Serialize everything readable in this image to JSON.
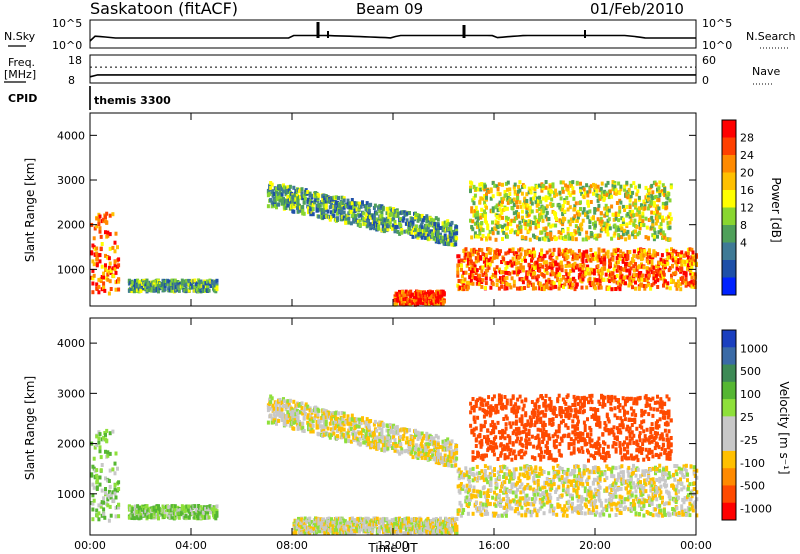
{
  "header": {
    "station": "Saskatoon (fitACF)",
    "beam": "Beam 09",
    "date": "01/Feb/2010"
  },
  "top_panels": {
    "nsky_label": "N.Sky",
    "nsearch_label": "N.Search",
    "nsky_ticks": [
      "10^5",
      "10^0"
    ],
    "freq_label": "Freq.",
    "freq_unit": "[MHz]",
    "freq_ticks": [
      "18",
      "8"
    ],
    "nave_label": "Nave",
    "nave_ticks": [
      "60",
      "0"
    ],
    "cpid_label": "CPID",
    "cpid_value": "themis 3300"
  },
  "colors": {
    "power": [
      "#0022ff",
      "#1e50a8",
      "#3f7a96",
      "#4fa05a",
      "#89d630",
      "#ffff00",
      "#ffc000",
      "#ff8a00",
      "#ff4000",
      "#ff0000"
    ],
    "velocity": [
      "#1a3fbf",
      "#3a6aa6",
      "#3d8a55",
      "#55b632",
      "#8ee03a",
      "#c8c8c8",
      "#c8c8c8",
      "#ffc000",
      "#ff8a00",
      "#ff4a00",
      "#ff0000"
    ]
  },
  "chart_data": [
    {
      "type": "line",
      "title": "Saskatoon (fitACF) Beam 09 01/Feb/2010",
      "panel": "N.Sky / N.Search",
      "x": [
        0,
        0.2,
        1,
        4,
        8,
        9.1,
        9.4,
        12,
        14.9,
        16,
        19.6,
        22,
        24
      ],
      "series": [
        {
          "name": "N.Sky",
          "values": [
            1,
            5,
            3,
            3,
            3,
            60,
            6,
            3,
            50,
            3,
            12,
            3,
            3
          ]
        }
      ]
    },
    {
      "type": "line",
      "panel": "Freq. [MHz] / Nave",
      "x": [
        0,
        0.3,
        6,
        12,
        18,
        24
      ],
      "series": [
        {
          "name": "Freq.",
          "values": [
            10.2,
            10.9,
            10.9,
            10.9,
            10.9,
            10.9
          ]
        },
        {
          "name": "Nave",
          "values": [
            34,
            34,
            34,
            34,
            34,
            34
          ]
        }
      ],
      "ylim": [
        8,
        18
      ]
    },
    {
      "type": "heatmap",
      "panel": "Power",
      "xlabel": "Time UT",
      "ylabel": "Slant Range [km]",
      "x_ticks": [
        "00:00",
        "04:00",
        "08:00",
        "12:00",
        "16:00",
        "20:00",
        "00:00"
      ],
      "xlim": [
        0,
        24
      ],
      "ylim": [
        180,
        4500
      ],
      "y_ticks": [
        1000,
        2000,
        3000,
        4000
      ],
      "colorbar_label": "Power [dB]",
      "colorbar_ticks": [
        4,
        8,
        12,
        16,
        20,
        24,
        28
      ],
      "features": [
        {
          "desc": "near-range echo",
          "t": [
            0.0,
            1.1
          ],
          "range": [
            500,
            2300
          ],
          "power_db": 26
        },
        {
          "desc": "low band",
          "t": [
            1.5,
            5.0
          ],
          "range": [
            550,
            800
          ],
          "power_db": 12
        },
        {
          "desc": "descending band",
          "t": [
            7.0,
            14.5
          ],
          "range": [
            2000,
            3000
          ],
          "power_db": 12
        },
        {
          "desc": "strong low echo",
          "t": [
            12.0,
            14.0
          ],
          "range": [
            250,
            550
          ],
          "power_db": 28
        },
        {
          "desc": "strong band",
          "t": [
            14.5,
            24.0
          ],
          "range": [
            600,
            1500
          ],
          "power_db": 26
        },
        {
          "desc": "patchy upper echoes",
          "t": [
            15.0,
            23.0
          ],
          "range": [
            1700,
            3000
          ],
          "power_db": 18
        }
      ]
    },
    {
      "type": "heatmap",
      "panel": "Velocity",
      "xlabel": "Time UT",
      "ylabel": "Slant Range [km]",
      "x_ticks": [
        "00:00",
        "04:00",
        "08:00",
        "12:00",
        "16:00",
        "20:00",
        "00:00"
      ],
      "xlim": [
        0,
        24
      ],
      "ylim": [
        180,
        4500
      ],
      "y_ticks": [
        1000,
        2000,
        3000,
        4000
      ],
      "colorbar_label": "Velocity [m s⁻¹]",
      "colorbar_ticks": [
        "1000",
        "500",
        "100",
        "25",
        "-25",
        "-100",
        "-500",
        "-1000"
      ],
      "features": [
        {
          "desc": "near-range echo",
          "t": [
            0.0,
            1.1
          ],
          "range": [
            500,
            2300
          ],
          "velocity": 80
        },
        {
          "desc": "low band",
          "t": [
            1.5,
            5.0
          ],
          "range": [
            550,
            800
          ],
          "velocity": 90
        },
        {
          "desc": "descending band",
          "t": [
            7.0,
            14.5
          ],
          "range": [
            2000,
            3000
          ],
          "velocity": 0
        },
        {
          "desc": "low echo",
          "t": [
            8.0,
            14.5
          ],
          "range": [
            250,
            550
          ],
          "velocity": 10
        },
        {
          "desc": "band",
          "t": [
            14.5,
            24.0
          ],
          "range": [
            600,
            1600
          ],
          "velocity": 0
        },
        {
          "desc": "patchy upper echoes",
          "t": [
            15.0,
            23.0
          ],
          "range": [
            1700,
            3000
          ],
          "velocity": -400
        }
      ]
    }
  ]
}
